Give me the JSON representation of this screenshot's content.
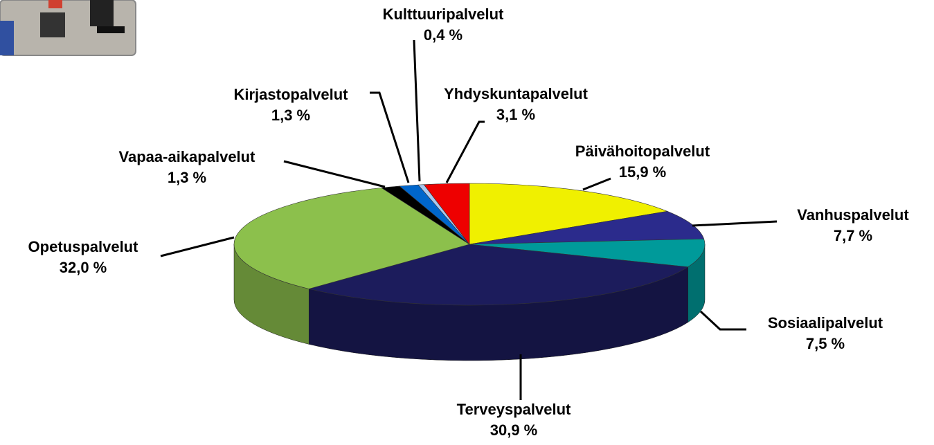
{
  "chart_data": {
    "type": "pie",
    "categories": [
      "Päivähoitopalvelut",
      "Vanhuspalvelut",
      "Sosiaalipalvelut",
      "Terveyspalvelut",
      "Opetuspalvelut",
      "Vapaa-aikapalvelut",
      "Kirjastopalvelut",
      "Kulttuuripalvelut",
      "Yhdyskuntapalvelut"
    ],
    "values": [
      15.9,
      7.7,
      7.5,
      30.9,
      32.0,
      1.3,
      1.3,
      0.4,
      3.1
    ],
    "value_labels": [
      "15,9 %",
      "7,7 %",
      "7,5 %",
      "30,9 %",
      "32,0 %",
      "1,3 %",
      "1,3 %",
      "0,4 %",
      "3,1 %"
    ],
    "colors": [
      "#f0f000",
      "#2b2b8c",
      "#009a9a",
      "#1c1c5c",
      "#8cc04c",
      "#000000",
      "#0066cc",
      "#a8c8f0",
      "#ee0000"
    ]
  }
}
